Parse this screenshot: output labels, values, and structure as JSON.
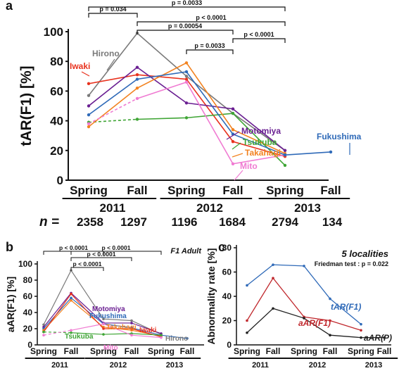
{
  "chart_data": [
    {
      "panel": "a",
      "type": "line",
      "ylabel": "tAR(F1) [%]",
      "ylim": [
        0,
        100
      ],
      "yticks": [
        "0",
        "20",
        "40",
        "60",
        "80",
        "100"
      ],
      "season_labels": [
        "Spring",
        "Fall",
        "Spring",
        "Fall",
        "Spring",
        "Fall"
      ],
      "year_labels": [
        "2011",
        "2012",
        "2013"
      ],
      "n_label": "n =",
      "n_values": [
        "2358",
        "1297",
        "1196",
        "1684",
        "2794",
        "134"
      ],
      "brackets": [
        {
          "from": 0,
          "to": 1,
          "text": "p = 0.034"
        },
        {
          "from": 0,
          "to": 4,
          "text": "p = 0.0033"
        },
        {
          "from": 1,
          "to": 4,
          "text": "p < 0.0001"
        },
        {
          "from": 1,
          "to": 3,
          "text": "p = 0.00054"
        },
        {
          "from": 3,
          "to": 4,
          "text": "p < 0.0001"
        },
        {
          "from": 2,
          "to": 3,
          "text": "p = 0.0033"
        }
      ],
      "series": [
        {
          "name": "Hirono",
          "color": "#7a7a7a",
          "points": [
            [
              0,
              57
            ],
            [
              1,
              99
            ],
            [
              2,
              70
            ],
            [
              3,
              45
            ],
            [
              4,
              20
            ]
          ]
        },
        {
          "name": "Iwaki",
          "color": "#e8321e",
          "points": [
            [
              0,
              65
            ],
            [
              1,
              71
            ],
            [
              2,
              68
            ],
            [
              3,
              26
            ],
            [
              4,
              16
            ]
          ]
        },
        {
          "name": "Motomiya",
          "color": "#6a1f92",
          "points": [
            [
              0,
              50
            ],
            [
              1,
              76
            ],
            [
              2,
              52
            ],
            [
              3,
              48
            ],
            [
              4,
              20
            ]
          ]
        },
        {
          "name": "Tsukuba",
          "color": "#3fa535",
          "points": [
            [
              0,
              39
            ],
            [
              1,
              41
            ],
            [
              2,
              42
            ],
            [
              3,
              45
            ],
            [
              4,
              10
            ]
          ]
        },
        {
          "name": "Takahagi",
          "color": "#f28321",
          "points": [
            [
              0,
              36
            ],
            [
              1,
              62
            ],
            [
              2,
              79
            ],
            [
              3,
              34
            ],
            [
              4,
              18
            ]
          ]
        },
        {
          "name": "Mito",
          "color": "#f07bd2",
          "points": [
            [
              0,
              38
            ],
            [
              1,
              55
            ],
            [
              2,
              66
            ],
            [
              3,
              11
            ],
            [
              4,
              17
            ]
          ]
        },
        {
          "name": "Fukushima",
          "color": "#2f6ab8",
          "points": [
            [
              0,
              44
            ],
            [
              1,
              68
            ],
            [
              2,
              73
            ],
            [
              3,
              31
            ],
            [
              4,
              17
            ],
            [
              5,
              19
            ]
          ]
        }
      ]
    },
    {
      "panel": "b",
      "type": "line",
      "title": "F1 Adult",
      "ylabel": "aAR(F1) [%]",
      "ylim": [
        0,
        100
      ],
      "yticks": [
        "0",
        "20",
        "40",
        "60",
        "80",
        "100"
      ],
      "season_labels": [
        "Spring",
        "Fall",
        "Spring",
        "Fall",
        "Spring",
        "Fall"
      ],
      "year_labels": [
        "2011",
        "2012",
        "2013"
      ],
      "brackets": [
        {
          "from": 0,
          "to": 2,
          "text": "p < 0.0001"
        },
        {
          "from": 1,
          "to": 4,
          "text": "p < 0.0001"
        },
        {
          "from": 1,
          "to": 3,
          "text": "p < 0.0001"
        },
        {
          "from": 1,
          "to": 2,
          "text": "p < 0.0001"
        }
      ],
      "series": [
        {
          "name": "Hirono",
          "color": "#7a7a7a",
          "points": [
            [
              0,
              25
            ],
            [
              1,
              92
            ],
            [
              2,
              32
            ],
            [
              3,
              30
            ],
            [
              4,
              13
            ]
          ]
        },
        {
          "name": "Motomiya",
          "color": "#6a1f92",
          "points": [
            [
              0,
              22
            ],
            [
              1,
              64
            ],
            [
              2,
              27
            ],
            [
              3,
              27
            ],
            [
              4,
              14
            ]
          ]
        },
        {
          "name": "Fukushima",
          "color": "#2f6ab8",
          "points": [
            [
              0,
              20
            ],
            [
              1,
              58
            ],
            [
              2,
              26
            ],
            [
              3,
              21
            ],
            [
              4,
              12
            ],
            [
              5,
              8
            ]
          ]
        },
        {
          "name": "Takahagi",
          "color": "#f28321",
          "points": [
            [
              0,
              18
            ],
            [
              1,
              55
            ],
            [
              2,
              22
            ],
            [
              3,
              18
            ],
            [
              4,
              11
            ]
          ]
        },
        {
          "name": "Iwaki",
          "color": "#e8321e",
          "points": [
            [
              0,
              16
            ],
            [
              1,
              63
            ],
            [
              2,
              20
            ],
            [
              3,
              20
            ],
            [
              4,
              10
            ]
          ]
        },
        {
          "name": "Tsukuba",
          "color": "#3fa535",
          "points": [
            [
              0,
              16
            ],
            [
              1,
              15
            ],
            [
              2,
              13
            ],
            [
              3,
              14
            ],
            [
              4,
              12
            ]
          ]
        },
        {
          "name": "Mito",
          "color": "#f07bd2",
          "points": [
            [
              0,
              12
            ],
            [
              1,
              18
            ],
            [
              2,
              26
            ],
            [
              3,
              12
            ],
            [
              4,
              9
            ]
          ]
        }
      ]
    },
    {
      "panel": "c",
      "type": "line",
      "title": "5 localities",
      "subtitle": "Friedman test : p = 0.022",
      "ylabel": "Abnormality rate [%]",
      "ylim": [
        0,
        80
      ],
      "yticks": [
        "0",
        "20",
        "40",
        "60",
        "80"
      ],
      "season_labels": [
        "Spring",
        "Fall",
        "Spring",
        "Fall",
        "Spring",
        "Fall"
      ],
      "year_labels": [
        "2011",
        "2012",
        "2013"
      ],
      "series": [
        {
          "name": "tAR(F1)",
          "color": "#2f6ab8",
          "points": [
            [
              0,
              49
            ],
            [
              1,
              66
            ],
            [
              2,
              65
            ],
            [
              3,
              38
            ],
            [
              4,
              17
            ]
          ]
        },
        {
          "name": "aAR(F1)",
          "color": "#c0282d",
          "points": [
            [
              0,
              20
            ],
            [
              1,
              55
            ],
            [
              2,
              23
            ],
            [
              3,
              20
            ],
            [
              4,
              12
            ]
          ]
        },
        {
          "name": "aAR(P)",
          "color": "#222222",
          "points": [
            [
              0,
              10
            ],
            [
              1,
              30
            ],
            [
              2,
              22
            ],
            [
              3,
              8
            ],
            [
              4,
              6
            ],
            [
              5,
              6
            ]
          ]
        }
      ]
    }
  ]
}
